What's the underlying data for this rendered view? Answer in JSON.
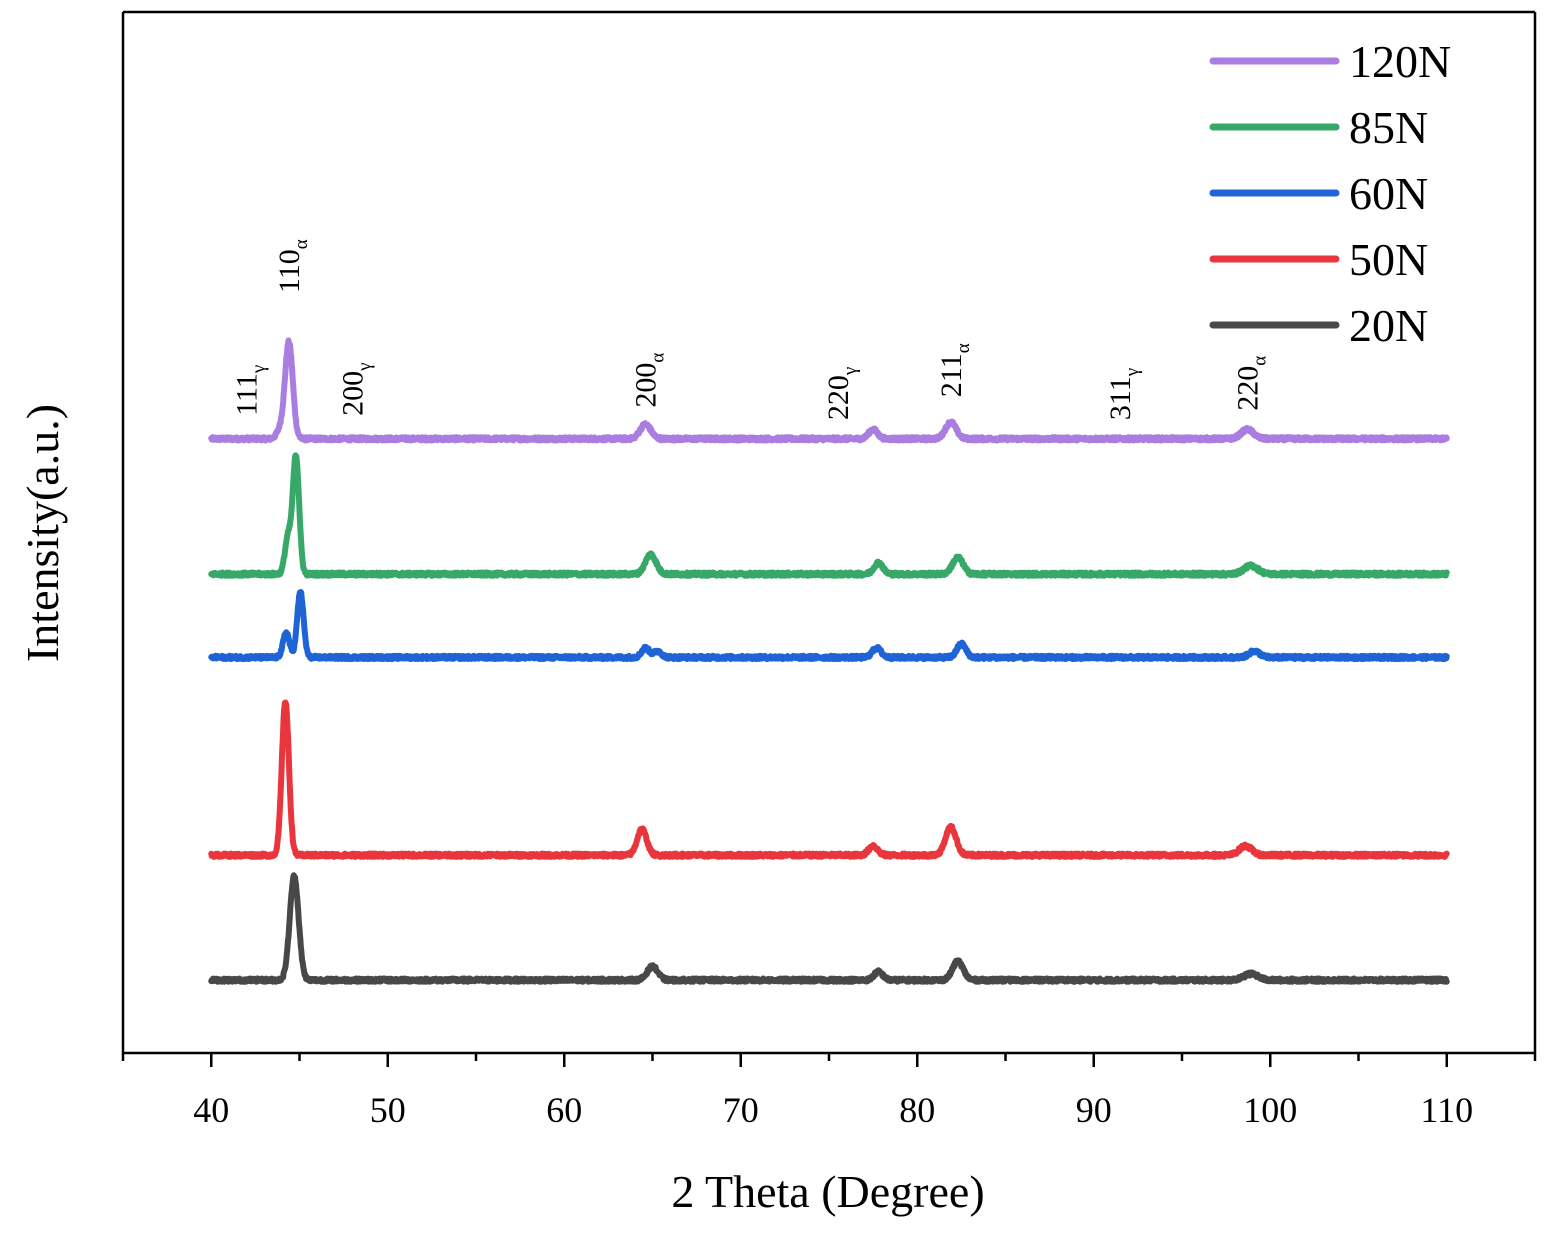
{
  "chart_data": {
    "type": "line",
    "title": "",
    "xlabel": "2 Theta (Degree)",
    "ylabel": "Intensity(a.u.)",
    "xlim": [
      35,
      115
    ],
    "x_ticks": [
      "40",
      "50",
      "60",
      "70",
      "80",
      "90",
      "100",
      "110"
    ],
    "x_tick_values": [
      40,
      50,
      60,
      70,
      80,
      90,
      100,
      110
    ],
    "x_minor_tick_values": [
      35,
      45,
      55,
      65,
      75,
      85,
      95,
      105,
      115
    ],
    "y_ticks": [],
    "ylim": [
      0,
      100
    ],
    "grid": false,
    "legend_position": "top-right",
    "x_range": [
      40,
      110
    ],
    "series": [
      {
        "name": "120N",
        "color": "#a97ee0",
        "baseline": 59,
        "peaks": [
          {
            "x": 44.4,
            "h": 9.3,
            "w": 0.22
          },
          {
            "x": 43.9,
            "h": 0.8,
            "w": 0.2
          },
          {
            "x": 64.6,
            "h": 1.4,
            "w": 0.3
          },
          {
            "x": 77.5,
            "h": 0.9,
            "w": 0.25
          },
          {
            "x": 81.9,
            "h": 1.6,
            "w": 0.3
          },
          {
            "x": 98.7,
            "h": 0.9,
            "w": 0.35
          }
        ]
      },
      {
        "name": "85N",
        "color": "#38a868",
        "baseline": 46,
        "peaks": [
          {
            "x": 44.8,
            "h": 11.3,
            "w": 0.18
          },
          {
            "x": 44.35,
            "h": 3.5,
            "w": 0.18
          },
          {
            "x": 64.9,
            "h": 1.9,
            "w": 0.3
          },
          {
            "x": 77.8,
            "h": 1.1,
            "w": 0.25
          },
          {
            "x": 82.3,
            "h": 1.6,
            "w": 0.3
          },
          {
            "x": 98.9,
            "h": 0.8,
            "w": 0.4
          }
        ]
      },
      {
        "name": "60N",
        "color": "#1f64d6",
        "baseline": 38,
        "peaks": [
          {
            "x": 44.25,
            "h": 2.4,
            "w": 0.18
          },
          {
            "x": 45.05,
            "h": 6.3,
            "w": 0.18
          },
          {
            "x": 64.6,
            "h": 0.9,
            "w": 0.22
          },
          {
            "x": 65.3,
            "h": 0.6,
            "w": 0.22
          },
          {
            "x": 77.7,
            "h": 0.9,
            "w": 0.25
          },
          {
            "x": 82.5,
            "h": 1.3,
            "w": 0.25
          },
          {
            "x": 99.1,
            "h": 0.6,
            "w": 0.3
          }
        ]
      },
      {
        "name": "50N",
        "color": "#e8363c",
        "baseline": 19,
        "peaks": [
          {
            "x": 44.2,
            "h": 14.8,
            "w": 0.2
          },
          {
            "x": 64.4,
            "h": 2.5,
            "w": 0.27
          },
          {
            "x": 77.5,
            "h": 0.9,
            "w": 0.25
          },
          {
            "x": 81.9,
            "h": 2.7,
            "w": 0.3
          },
          {
            "x": 98.6,
            "h": 0.9,
            "w": 0.35
          }
        ]
      },
      {
        "name": "20N",
        "color": "#484848",
        "baseline": 7,
        "peaks": [
          {
            "x": 44.7,
            "h": 10.0,
            "w": 0.25
          },
          {
            "x": 65.0,
            "h": 1.3,
            "w": 0.3
          },
          {
            "x": 77.8,
            "h": 0.8,
            "w": 0.25
          },
          {
            "x": 82.3,
            "h": 1.8,
            "w": 0.3
          },
          {
            "x": 98.9,
            "h": 0.6,
            "w": 0.4
          }
        ]
      }
    ],
    "annotations": [
      {
        "base": "111",
        "sub": "γ",
        "x": 42.0,
        "y": 61.2
      },
      {
        "base": "110",
        "sub": "α",
        "x": 44.4,
        "y": 73.0
      },
      {
        "base": "200",
        "sub": "γ",
        "x": 48.0,
        "y": 61.2
      },
      {
        "base": "200",
        "sub": "α",
        "x": 64.6,
        "y": 62.0
      },
      {
        "base": "220",
        "sub": "γ",
        "x": 75.5,
        "y": 60.8
      },
      {
        "base": "211",
        "sub": "α",
        "x": 81.9,
        "y": 63.0
      },
      {
        "base": "311",
        "sub": "γ",
        "x": 91.5,
        "y": 60.8
      },
      {
        "base": "220",
        "sub": "α",
        "x": 98.7,
        "y": 61.7
      }
    ]
  }
}
